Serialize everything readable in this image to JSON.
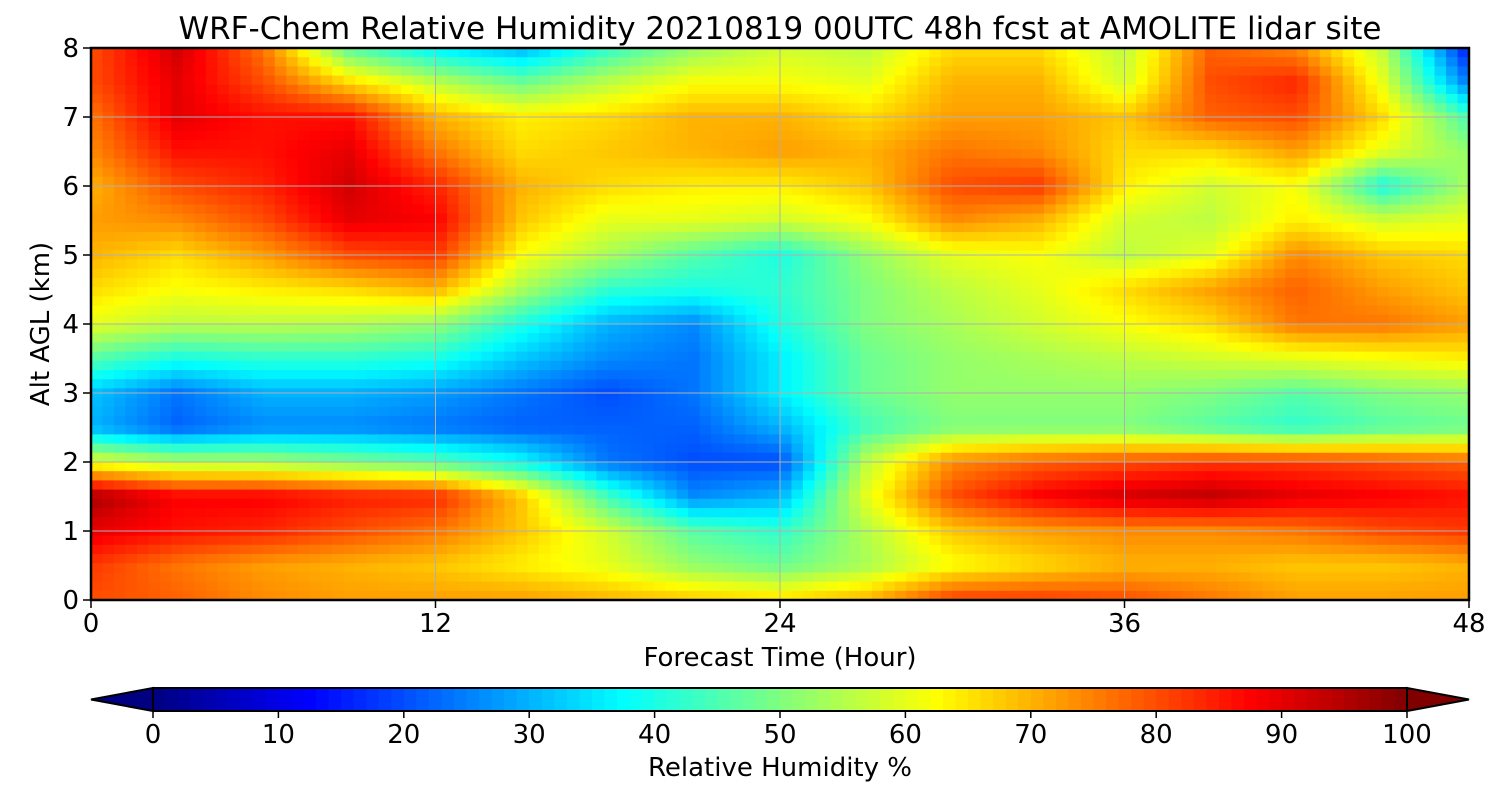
{
  "chart_data": {
    "type": "heatmap",
    "title": "WRF-Chem Relative Humidity 20210819 00UTC 48h fcst at AMOLITE lidar site",
    "xlabel": "Forecast Time (Hour)",
    "ylabel": "Alt AGL (km)",
    "xlim": [
      0,
      48
    ],
    "ylim": [
      0,
      8
    ],
    "x_ticks": [
      0,
      12,
      24,
      36,
      48
    ],
    "y_ticks": [
      0,
      1,
      2,
      3,
      4,
      5,
      6,
      7,
      8
    ],
    "grid": true,
    "x": [
      0,
      3,
      6,
      9,
      12,
      15,
      18,
      21,
      24,
      27,
      30,
      33,
      36,
      39,
      42,
      45,
      48
    ],
    "y": [
      0,
      0.5,
      1,
      1.5,
      2,
      2.5,
      3,
      3.5,
      4,
      4.5,
      5,
      5.5,
      6,
      6.5,
      7,
      7.5,
      8
    ],
    "z": [
      [
        80,
        78,
        74,
        72,
        72,
        72,
        70,
        68,
        66,
        70,
        82,
        82,
        80,
        76,
        72,
        72,
        72
      ],
      [
        82,
        76,
        72,
        70,
        68,
        64,
        60,
        52,
        48,
        54,
        62,
        66,
        70,
        70,
        68,
        68,
        70
      ],
      [
        90,
        86,
        84,
        80,
        76,
        68,
        58,
        46,
        42,
        55,
        68,
        72,
        74,
        74,
        76,
        80,
        82
      ],
      [
        96,
        88,
        88,
        85,
        84,
        68,
        44,
        26,
        30,
        60,
        80,
        88,
        92,
        94,
        90,
        88,
        86
      ],
      [
        60,
        55,
        54,
        50,
        46,
        38,
        24,
        20,
        20,
        56,
        74,
        78,
        80,
        82,
        82,
        80,
        78
      ],
      [
        30,
        22,
        26,
        26,
        24,
        22,
        22,
        22,
        30,
        44,
        50,
        50,
        50,
        46,
        42,
        46,
        48
      ],
      [
        32,
        24,
        30,
        30,
        28,
        24,
        20,
        24,
        36,
        48,
        52,
        52,
        52,
        50,
        46,
        50,
        52
      ],
      [
        46,
        40,
        42,
        42,
        40,
        32,
        26,
        24,
        36,
        48,
        52,
        54,
        56,
        58,
        60,
        62,
        64
      ],
      [
        60,
        56,
        56,
        55,
        52,
        40,
        30,
        26,
        40,
        50,
        54,
        58,
        62,
        66,
        76,
        76,
        72
      ],
      [
        66,
        62,
        64,
        66,
        70,
        54,
        42,
        40,
        42,
        50,
        56,
        60,
        66,
        72,
        78,
        72,
        68
      ],
      [
        70,
        66,
        72,
        80,
        82,
        62,
        54,
        46,
        40,
        52,
        60,
        62,
        56,
        60,
        74,
        68,
        66
      ],
      [
        72,
        74,
        80,
        90,
        88,
        68,
        60,
        60,
        58,
        62,
        74,
        70,
        58,
        56,
        64,
        58,
        60
      ],
      [
        70,
        80,
        84,
        92,
        84,
        70,
        66,
        64,
        64,
        68,
        80,
        82,
        64,
        58,
        62,
        40,
        54
      ],
      [
        74,
        86,
        86,
        90,
        76,
        66,
        68,
        70,
        72,
        70,
        76,
        74,
        66,
        66,
        72,
        60,
        52
      ],
      [
        76,
        90,
        86,
        86,
        70,
        64,
        66,
        70,
        70,
        66,
        72,
        72,
        68,
        78,
        80,
        66,
        44
      ],
      [
        80,
        90,
        80,
        66,
        56,
        48,
        56,
        62,
        62,
        60,
        70,
        70,
        58,
        80,
        84,
        60,
        24
      ],
      [
        80,
        92,
        76,
        46,
        36,
        30,
        42,
        52,
        58,
        56,
        66,
        66,
        56,
        78,
        74,
        56,
        14
      ]
    ],
    "colorbar": {
      "label": "Relative Humidity %",
      "min": 0,
      "max": 100,
      "ticks": [
        0,
        10,
        20,
        30,
        40,
        50,
        60,
        70,
        80,
        90,
        100
      ],
      "colormap": "jet",
      "extend": "both"
    }
  },
  "colors": {
    "grid": "#b0b0b0",
    "axes": "#000000"
  }
}
